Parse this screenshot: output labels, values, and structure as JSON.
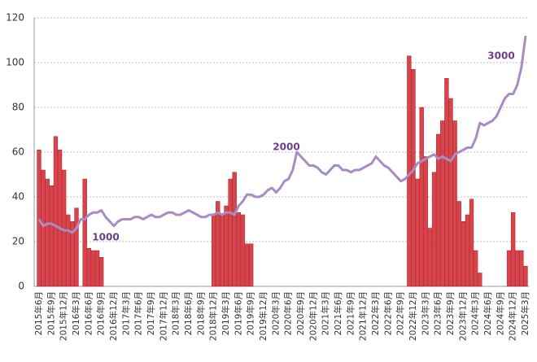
{
  "chart_data": {
    "type": "bar",
    "categories": [
      "2015年6月",
      null,
      null,
      "2015年9月",
      null,
      null,
      "2015年12月",
      null,
      null,
      "2016年3月",
      null,
      null,
      "2016年6月",
      null,
      null,
      "2016年9月",
      null,
      null,
      "2016年12月",
      null,
      null,
      "2017年3月",
      null,
      null,
      "2017年6月",
      null,
      null,
      "2017年9月",
      null,
      null,
      "2017年12月",
      null,
      null,
      "2018年3月",
      null,
      null,
      "2018年6月",
      null,
      null,
      "2018年9月",
      null,
      null,
      "2018年12月",
      null,
      null,
      "2019年3月",
      null,
      null,
      "2019年6月",
      null,
      null,
      "2019年9月",
      null,
      null,
      "2019年12月",
      null,
      null,
      "2020年3月",
      null,
      null,
      "2020年6月",
      null,
      null,
      "2020年9月",
      null,
      null,
      "2020年12月",
      null,
      null,
      "2021年3月",
      null,
      null,
      "2021年6月",
      null,
      null,
      "2021年9月",
      null,
      null,
      "2021年12月",
      null,
      null,
      "2022年3月",
      null,
      null,
      "2022年6月",
      null,
      null,
      "2022年9月",
      null,
      null,
      "2022年12月",
      null,
      null,
      "2023年3月",
      null,
      null,
      "2023年6月",
      null,
      null,
      "2023年9月",
      null,
      null,
      "2023年12月",
      null,
      null,
      "2024年3月",
      null,
      null,
      "2024年6月",
      null,
      null,
      "2024年9月",
      null,
      null,
      "2024年12月",
      null,
      null,
      "2025年3月"
    ],
    "series": [
      {
        "type": "bar",
        "color": "#d9434b",
        "values": [
          61,
          52,
          48,
          45,
          67,
          61,
          52,
          32,
          29,
          35,
          0,
          48,
          17,
          16,
          16,
          13,
          0,
          0,
          0,
          0,
          0,
          0,
          0,
          0,
          0,
          0,
          0,
          0,
          0,
          0,
          0,
          0,
          0,
          0,
          0,
          0,
          0,
          0,
          0,
          0,
          0,
          0,
          32,
          38,
          32,
          36,
          48,
          51,
          33,
          32,
          19,
          19,
          0,
          0,
          0,
          0,
          0,
          0,
          0,
          0,
          0,
          0,
          0,
          0,
          0,
          0,
          0,
          0,
          0,
          0,
          0,
          0,
          0,
          0,
          0,
          0,
          0,
          0,
          0,
          0,
          0,
          0,
          0,
          0,
          0,
          0,
          0,
          0,
          0,
          103,
          97,
          48,
          80,
          58,
          26,
          51,
          68,
          74,
          93,
          84,
          74,
          38,
          29,
          32,
          39,
          16,
          6,
          0,
          0,
          0,
          0,
          0,
          0,
          16,
          33,
          16,
          16,
          9
        ]
      },
      {
        "type": "line",
        "color": "#a88cc4",
        "values": [
          30,
          27,
          28,
          28,
          27,
          26,
          25,
          25,
          24,
          26,
          30,
          30,
          32,
          33,
          33,
          34,
          31,
          29,
          27,
          29,
          30,
          30,
          30,
          31,
          31,
          30,
          31,
          32,
          31,
          31,
          32,
          33,
          33,
          32,
          32,
          33,
          34,
          33,
          32,
          31,
          31,
          32,
          32,
          33,
          32,
          33,
          33,
          32,
          36,
          38,
          41,
          41,
          40,
          40,
          41,
          43,
          44,
          42,
          44,
          47,
          48,
          52,
          60,
          58,
          56,
          54,
          54,
          53,
          51,
          50,
          52,
          54,
          54,
          52,
          52,
          51,
          52,
          52,
          53,
          54,
          55,
          58,
          56,
          54,
          53,
          51,
          49,
          47,
          48,
          50,
          52,
          55,
          56,
          57,
          58,
          59,
          57,
          58,
          57,
          56,
          59,
          60,
          61,
          62,
          62,
          66,
          73,
          72,
          73,
          74,
          76,
          80,
          84,
          86,
          86,
          90,
          98,
          112
        ]
      }
    ],
    "annotations": [
      "1000",
      "2000",
      "3000"
    ],
    "ylim": [
      0,
      120
    ],
    "yticks": [
      0,
      20,
      40,
      60,
      80,
      100,
      120
    ],
    "grid": true
  }
}
